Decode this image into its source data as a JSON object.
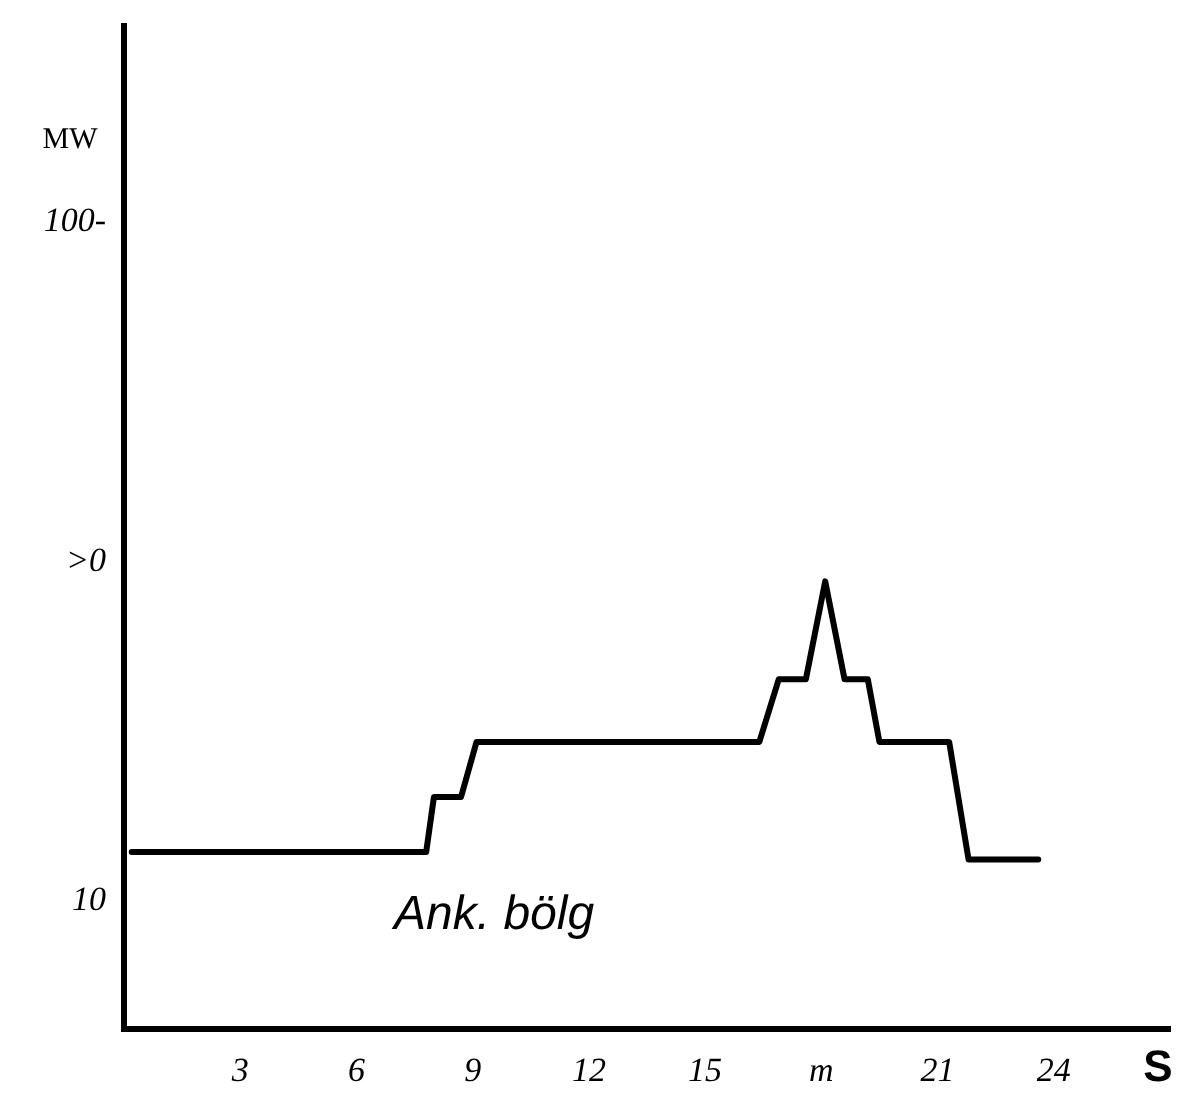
{
  "chart_data": {
    "type": "line",
    "xlabel": "S",
    "ylabel": "MW",
    "annotations": [
      "Ank. bölg"
    ],
    "x": [
      0.2,
      7.8,
      8.0,
      8.7,
      9.1,
      16.4,
      16.9,
      17.6,
      18.1,
      18.6,
      19.2,
      19.5,
      21.3,
      21.8,
      23.6
    ],
    "series": [
      {
        "color": "#000000",
        "values": [
          16.5,
          16.5,
          23.8,
          23.8,
          31.1,
          31.1,
          39.4,
          39.4,
          52.4,
          39.4,
          39.4,
          31.1,
          31.1,
          15.5,
          15.5
        ]
      }
    ],
    "xlim": [
      0,
      27
    ],
    "ylim": [
      -7,
      126
    ],
    "xticks": [
      3,
      6,
      9,
      12,
      15,
      {
        "value": 18,
        "label": "m"
      },
      21,
      24
    ],
    "yticks": [
      10,
      {
        "value": 55,
        "label": ">0"
      },
      {
        "value": 100,
        "label": "100-"
      }
    ],
    "grid": false,
    "legend": false,
    "marker": "none",
    "line_style": "solid"
  }
}
